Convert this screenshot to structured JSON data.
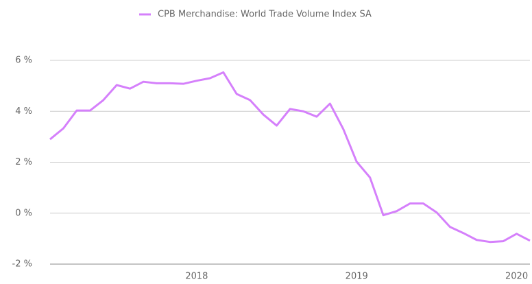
{
  "chart_data": {
    "type": "line",
    "series": [
      {
        "name": "CPB Merchandise: World Trade Volume Index  SA",
        "color": "#d580fb",
        "values": [
          2.9,
          3.33,
          4.03,
          4.03,
          4.44,
          5.03,
          4.89,
          5.16,
          5.1,
          5.1,
          5.08,
          5.2,
          5.3,
          5.53,
          4.68,
          4.44,
          3.87,
          3.44,
          4.09,
          4.0,
          3.79,
          4.3,
          3.3,
          2.02,
          1.4,
          -0.08,
          0.08,
          0.38,
          0.38,
          0.03,
          -0.54,
          -0.78,
          -1.05,
          -1.13,
          -1.1,
          -0.81,
          -1.08
        ]
      }
    ],
    "categories": [
      null,
      null,
      null,
      null,
      null,
      null,
      null,
      null,
      null,
      null,
      null,
      "2018",
      null,
      null,
      null,
      null,
      null,
      null,
      null,
      null,
      null,
      null,
      null,
      "2019",
      null,
      null,
      null,
      null,
      null,
      null,
      null,
      null,
      null,
      null,
      null,
      "2020",
      null
    ],
    "ylim": [
      -2,
      6
    ],
    "yticks": [
      {
        "value": -2,
        "label": "-2 %"
      },
      {
        "value": 0,
        "label": "0 %"
      },
      {
        "value": 2,
        "label": "2 %"
      },
      {
        "value": 4,
        "label": "4 %"
      },
      {
        "value": 6,
        "label": "6 %"
      }
    ],
    "grid": true,
    "legend": "top"
  }
}
